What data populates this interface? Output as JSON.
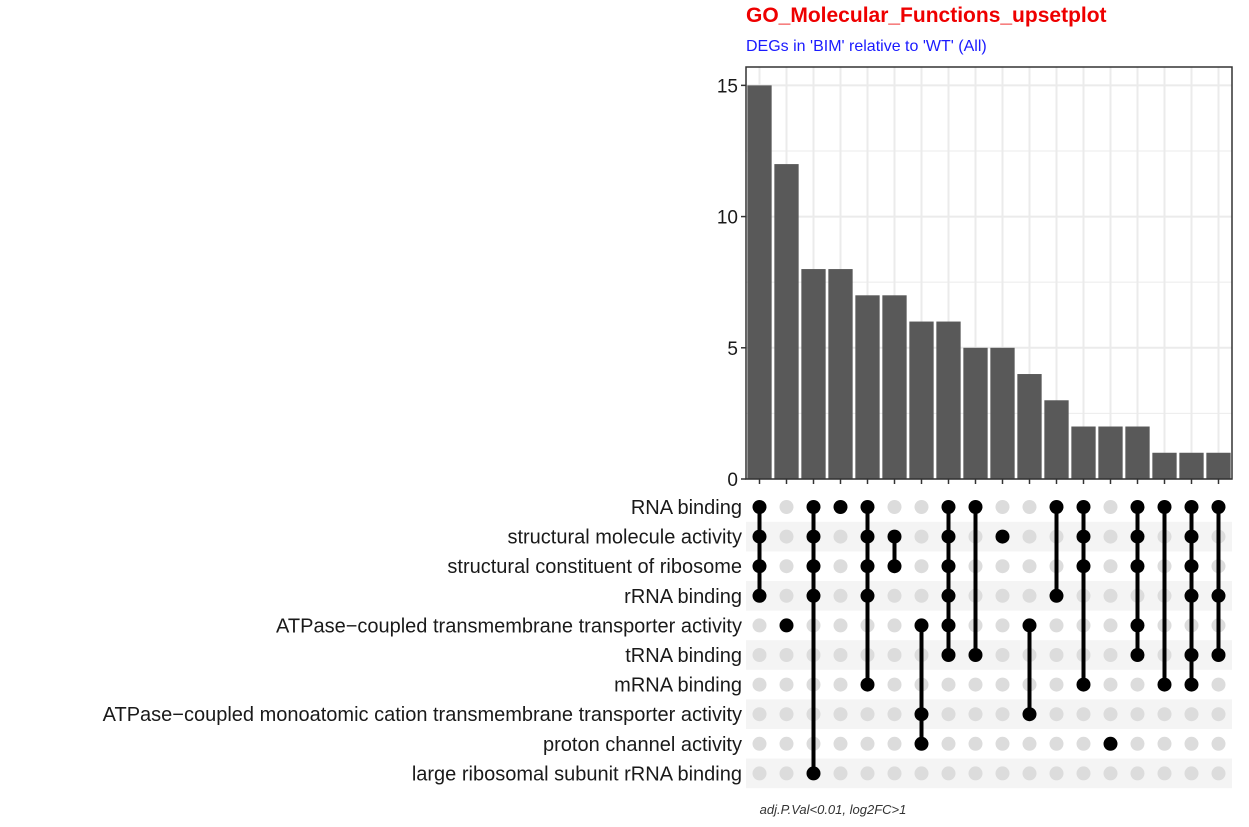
{
  "colors": {
    "title": "#ee0000",
    "subtitle": "#1a1aff",
    "bar": "#595959",
    "dot_on": "#000000",
    "dot_off": "#dcdcdc",
    "stripe": "#f4f4f4",
    "grid": "#ebebeb"
  },
  "chart_data": {
    "type": "bar",
    "title": "GO_Molecular_Functions_upsetplot",
    "subtitle": "DEGs in 'BIM' relative to 'WT' (All)",
    "caption": "adj.P.Val<0.01, log2FC>1",
    "ylim": [
      0,
      15.7
    ],
    "yticks": [
      "0",
      "5",
      "10",
      "15"
    ],
    "values": [
      15,
      12,
      8,
      8,
      7,
      7,
      6,
      6,
      5,
      5,
      4,
      3,
      2,
      2,
      2,
      1,
      1,
      1
    ],
    "sets": [
      "RNA binding",
      "structural molecule activity",
      "structural constituent of ribosome",
      "rRNA binding",
      "ATPase−coupled transmembrane transporter activity",
      "tRNA binding",
      "mRNA binding",
      "ATPase−coupled monoatomic cation transmembrane transporter activity",
      "proton channel activity",
      "large ribosomal subunit rRNA binding"
    ],
    "intersections": [
      [
        0,
        1,
        2,
        3
      ],
      [
        4
      ],
      [
        0,
        1,
        2,
        3,
        9
      ],
      [
        0
      ],
      [
        0,
        1,
        2,
        3,
        6
      ],
      [
        1,
        2
      ],
      [
        4,
        7,
        8
      ],
      [
        0,
        1,
        2,
        3,
        4,
        5
      ],
      [
        0,
        5
      ],
      [
        1
      ],
      [
        4,
        7
      ],
      [
        0,
        3
      ],
      [
        0,
        1,
        2,
        6
      ],
      [
        8
      ],
      [
        0,
        1,
        2,
        4,
        5
      ],
      [
        0,
        6
      ],
      [
        0,
        1,
        2,
        3,
        5,
        6
      ],
      [
        0,
        3,
        5
      ]
    ]
  }
}
